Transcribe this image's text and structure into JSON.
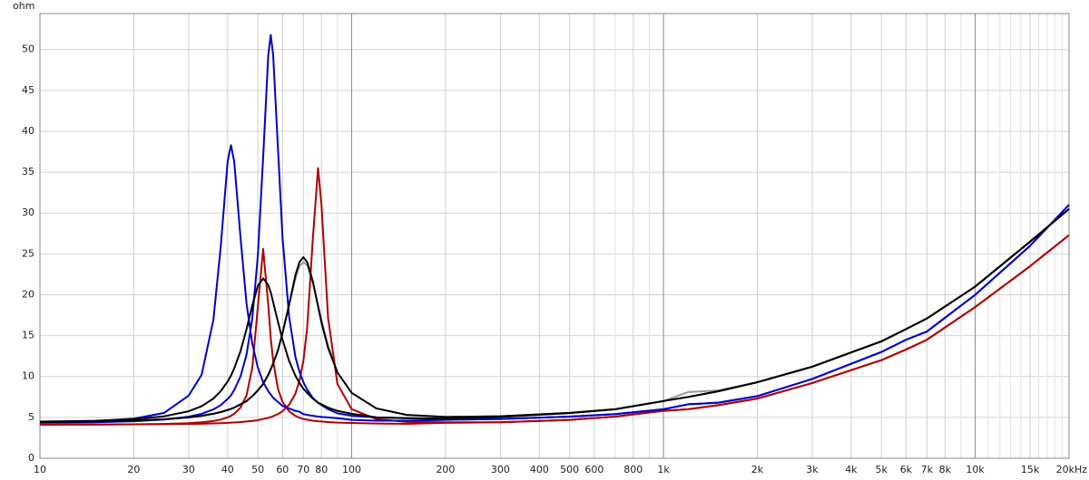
{
  "chart_data": {
    "type": "line",
    "y_label": "ohm",
    "xscale": "log",
    "xlim": [
      10,
      20000
    ],
    "ylim": [
      0,
      54.4
    ],
    "yticks": [
      0,
      5,
      10,
      15,
      20,
      25,
      30,
      35,
      40,
      45,
      50
    ],
    "xticks": [
      10,
      20,
      30,
      40,
      50,
      60,
      70,
      80,
      100,
      200,
      300,
      400,
      500,
      600,
      800,
      {
        "value": 1000,
        "label": "1k"
      },
      {
        "value": 2000,
        "label": "2k"
      },
      {
        "value": 3000,
        "label": "3k"
      },
      {
        "value": 4000,
        "label": "4k"
      },
      {
        "value": 5000,
        "label": "5k"
      },
      {
        "value": 6000,
        "label": "6k"
      },
      {
        "value": 7000,
        "label": "7k"
      },
      {
        "value": 8000,
        "label": "8k"
      },
      {
        "value": 10000,
        "label": "10k"
      },
      {
        "value": 15000,
        "label": "15k"
      },
      {
        "value": 20000,
        "label": "20kHz"
      }
    ],
    "xminor": [
      90,
      700,
      900,
      9000,
      11000,
      12000,
      13000,
      14000,
      16000,
      17000,
      18000,
      19000
    ],
    "grid": true,
    "x": [
      10,
      15,
      20,
      25,
      30,
      33,
      36,
      38,
      40,
      41,
      42,
      44,
      46,
      48,
      50,
      52,
      54,
      55,
      56,
      58,
      60,
      63,
      66,
      68,
      70,
      72,
      75,
      78,
      80,
      84,
      90,
      100,
      120,
      150,
      200,
      300,
      500,
      700,
      1000,
      1200,
      1500,
      2000,
      3000,
      5000,
      6000,
      7000,
      10000,
      15000,
      20000
    ],
    "series": [
      {
        "color": "#999999",
        "values": [
          4.45,
          4.51,
          4.62,
          4.77,
          5,
          5.19,
          5.44,
          5.65,
          5.9,
          6.04,
          6.2,
          6.6,
          7,
          7.6,
          8.3,
          9.1,
          10.2,
          10.9,
          11.6,
          13.2,
          15.3,
          18.8,
          22,
          23.5,
          24,
          23.6,
          21.5,
          18.7,
          16.9,
          13.8,
          10.5,
          8,
          6.1,
          5.3,
          5.05,
          5.14,
          5.55,
          6.0,
          7.0,
          8.1,
          8.3,
          9.3,
          11.2,
          14.3,
          15.8,
          17.1,
          21,
          26.5,
          30.5
        ]
      },
      {
        "color": "#b00000",
        "values": [
          4.11,
          4.13,
          4.15,
          4.2,
          4.3,
          4.4,
          4.56,
          4.73,
          5,
          5.19,
          5.44,
          6.2,
          7.7,
          11.1,
          18.5,
          25.6,
          18.8,
          14.7,
          11.9,
          8.5,
          6.9,
          5.74,
          5.19,
          4.96,
          4.8,
          4.72,
          4.6,
          4.53,
          4.5,
          4.43,
          4.36,
          4.32,
          4.25,
          4.21,
          4.33,
          4.4,
          4.7,
          5.1,
          5.8,
          6.0,
          6.5,
          7.3,
          9.2,
          12,
          13.3,
          14.5,
          18.5,
          23.5,
          27.3
        ]
      },
      {
        "color": "#b00000",
        "values": [
          4.11,
          4.13,
          4.15,
          4.17,
          4.2,
          4.23,
          4.27,
          4.3,
          4.34,
          4.36,
          4.38,
          4.43,
          4.5,
          4.57,
          4.67,
          4.8,
          4.95,
          5.04,
          5.15,
          5.41,
          5.75,
          6.55,
          7.9,
          9.5,
          11.9,
          16,
          26.7,
          35.5,
          31,
          17.2,
          9.1,
          6,
          4.8,
          4.45,
          4.4,
          4.4,
          4.7,
          5.1,
          5.8,
          6.0,
          6.5,
          7.3,
          9.2,
          12,
          13.3,
          14.5,
          18.5,
          23.5,
          27.3
        ]
      },
      {
        "color": "#0000cc",
        "values": [
          4.39,
          4.54,
          4.85,
          5.54,
          7.67,
          10.2,
          16.9,
          25.8,
          36.3,
          38.3,
          36.3,
          27,
          18.9,
          14,
          11.1,
          9.3,
          8.2,
          7.8,
          7.4,
          6.9,
          6.4,
          6.1,
          5.8,
          5.7,
          5.4,
          5.3,
          5.2,
          5.1,
          5.05,
          5,
          4.9,
          4.7,
          4.6,
          4.6,
          4.7,
          4.8,
          5.1,
          5.4,
          6.0,
          6.6,
          6.8,
          7.6,
          9.7,
          13,
          14.5,
          15.5,
          20,
          26,
          31
        ]
      },
      {
        "color": "#0000cc",
        "values": [
          4.35,
          4.41,
          4.53,
          4.73,
          5.08,
          5.43,
          5.97,
          6.5,
          7.25,
          7.7,
          8.36,
          10,
          12.7,
          17.1,
          24.8,
          36.8,
          49.3,
          51.8,
          49.3,
          38,
          27,
          17.3,
          12.4,
          10.6,
          9.3,
          8.4,
          7.4,
          6.8,
          6.5,
          6,
          5.5,
          5.2,
          5,
          4.9,
          4.8,
          4.8,
          5.1,
          5.4,
          6.0,
          6.6,
          6.8,
          7.6,
          9.7,
          13,
          14.5,
          15.5,
          20,
          26,
          31
        ]
      },
      {
        "color": "#000000",
        "values": [
          4.48,
          4.59,
          4.79,
          5.13,
          5.75,
          6.36,
          7.3,
          8.2,
          9.4,
          10.1,
          11,
          13.1,
          15.8,
          18.7,
          21.1,
          22,
          21.2,
          20.3,
          19.1,
          16.7,
          14.5,
          11.9,
          10.1,
          9.2,
          8.5,
          8,
          7.3,
          6.8,
          6.6,
          6.2,
          5.8,
          5.44,
          5.0,
          4.9,
          4.85,
          5.06,
          5.52,
          6.0,
          7.0,
          7.5,
          8.2,
          9.3,
          11.2,
          14.3,
          15.8,
          17.1,
          21,
          26.5,
          30.5
        ]
      },
      {
        "color": "#000000",
        "values": [
          4.45,
          4.51,
          4.62,
          4.77,
          5,
          5.19,
          5.44,
          5.65,
          5.9,
          6.04,
          6.2,
          6.6,
          7,
          7.6,
          8.3,
          9.1,
          10.2,
          10.9,
          11.6,
          13.2,
          15.3,
          18.8,
          22.4,
          24,
          24.6,
          24,
          21.7,
          18.6,
          16.6,
          13.5,
          10.5,
          8,
          6.1,
          5.3,
          5.05,
          5.14,
          5.55,
          6.0,
          7.0,
          7.5,
          8.2,
          9.3,
          11.2,
          14.3,
          15.8,
          17.1,
          21,
          26.5,
          30.5
        ]
      }
    ]
  }
}
